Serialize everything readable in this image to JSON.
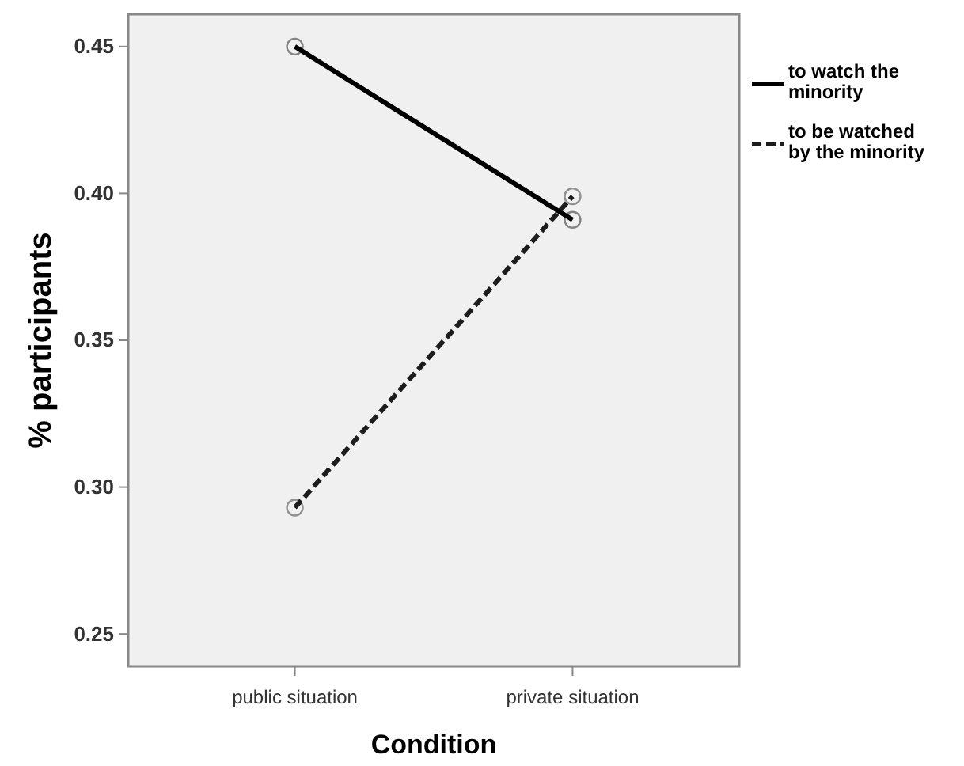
{
  "chart_data": {
    "type": "line",
    "xlabel": "Condition",
    "ylabel": "% participants",
    "categories": [
      "public situation",
      "private situation"
    ],
    "series": [
      {
        "name": "to watch the minority",
        "color": "#000000",
        "values": [
          0.45,
          0.391
        ],
        "line_style": "solid"
      },
      {
        "name": "to be watched by the minority",
        "color": "#1c1c1c",
        "values": [
          0.293,
          0.399
        ],
        "line_style": "dashed"
      }
    ],
    "ylim": [
      0.239,
      0.461
    ],
    "yticks": [
      {
        "value": 0.25,
        "label": "0.25"
      },
      {
        "value": 0.3,
        "label": "0.30"
      },
      {
        "value": 0.35,
        "label": "0.35"
      },
      {
        "value": 0.4,
        "label": "0.40"
      },
      {
        "value": 0.45,
        "label": "0.45"
      }
    ],
    "marker": "circle",
    "legend": "top right",
    "grid": false
  }
}
